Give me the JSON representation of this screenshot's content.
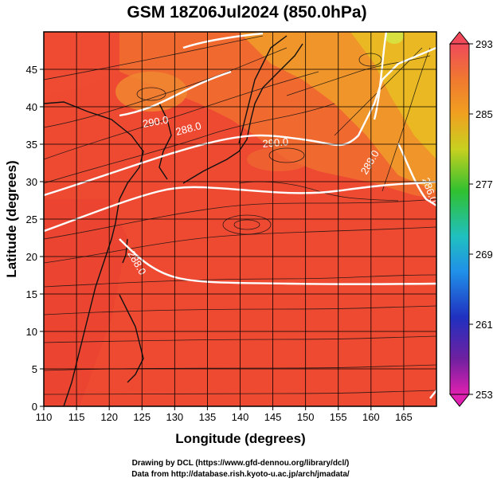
{
  "title": "GSM 18Z06Jul2024 (850.0hPa)",
  "xlabel": "Longitude (degrees)",
  "ylabel": "Latitude (degrees)",
  "xticks": [
    "110",
    "115",
    "120",
    "125",
    "130",
    "135",
    "140",
    "145",
    "150",
    "155",
    "160",
    "165"
  ],
  "yticks": [
    "0",
    "5",
    "10",
    "15",
    "20",
    "25",
    "30",
    "35",
    "40",
    "45"
  ],
  "colorbar": {
    "ticks": [
      "293",
      "285",
      "277",
      "269",
      "261",
      "253"
    ],
    "colors": [
      "#f0508a",
      "#f07a2a",
      "#f0a020",
      "#c8c820",
      "#40c020",
      "#20c0a0",
      "#20a0e0",
      "#2040d0",
      "#6020a0",
      "#d020c0"
    ]
  },
  "contour_labels": [
    "290.0",
    "288.0",
    "290.0",
    "288.0",
    "286.0",
    "288.0"
  ],
  "credits": {
    "line1": "Drawing by DCL (https://www.gfd-dennou.org/library/dcl/)",
    "line2": "Data from http://database.rish.kyoto-u.ac.jp/arch/jmadata/"
  },
  "chart_data": {
    "type": "heatmap",
    "title": "GSM 18Z06Jul2024 (850.0hPa)",
    "xlabel": "Longitude (degrees)",
    "ylabel": "Latitude (degrees)",
    "xlim": [
      110,
      170
    ],
    "ylim": [
      0,
      50
    ],
    "color_range": [
      253,
      293
    ],
    "overlay": "streamlines",
    "grid": true
  }
}
